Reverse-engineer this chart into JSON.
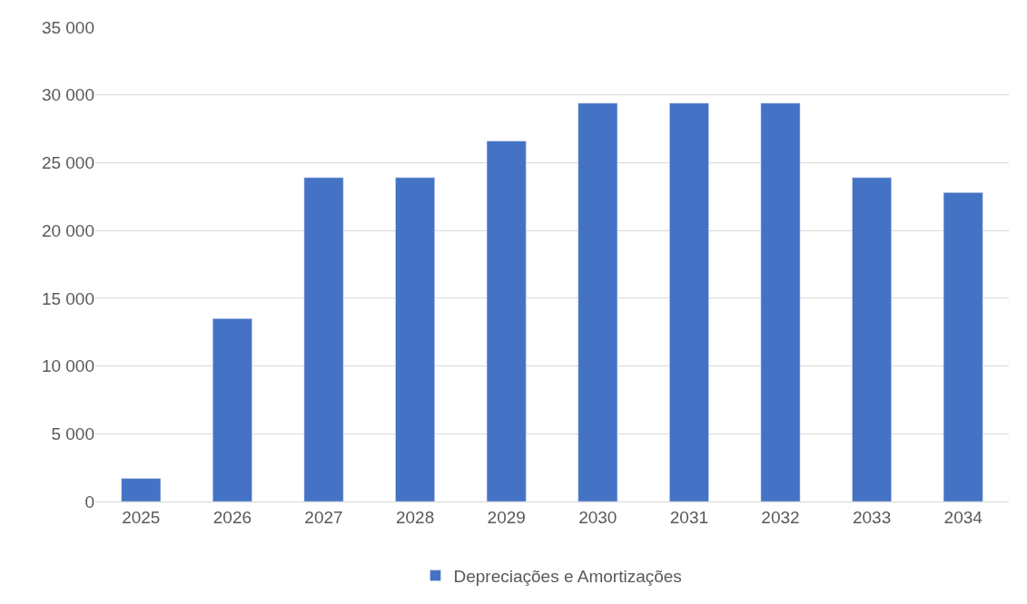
{
  "chart_data": {
    "type": "bar",
    "categories": [
      "2025",
      "2026",
      "2027",
      "2028",
      "2029",
      "2030",
      "2031",
      "2032",
      "2033",
      "2034"
    ],
    "series": [
      {
        "name": "Depreciações e Amortizações",
        "color": "#4472c4",
        "values": [
          1700,
          13500,
          23900,
          23900,
          26600,
          29400,
          29400,
          29400,
          23900,
          22800
        ]
      }
    ],
    "ylim": [
      0,
      35000
    ],
    "yticks": [
      {
        "value": 0,
        "label": "0"
      },
      {
        "value": 5000,
        "label": "5 000"
      },
      {
        "value": 10000,
        "label": "10 000"
      },
      {
        "value": 15000,
        "label": "15 000"
      },
      {
        "value": 20000,
        "label": "20 000"
      },
      {
        "value": 25000,
        "label": "25 000"
      },
      {
        "value": 30000,
        "label": "30 000"
      },
      {
        "value": 35000,
        "label": "35 000"
      }
    ],
    "grid": "y",
    "legend": "bottom"
  }
}
